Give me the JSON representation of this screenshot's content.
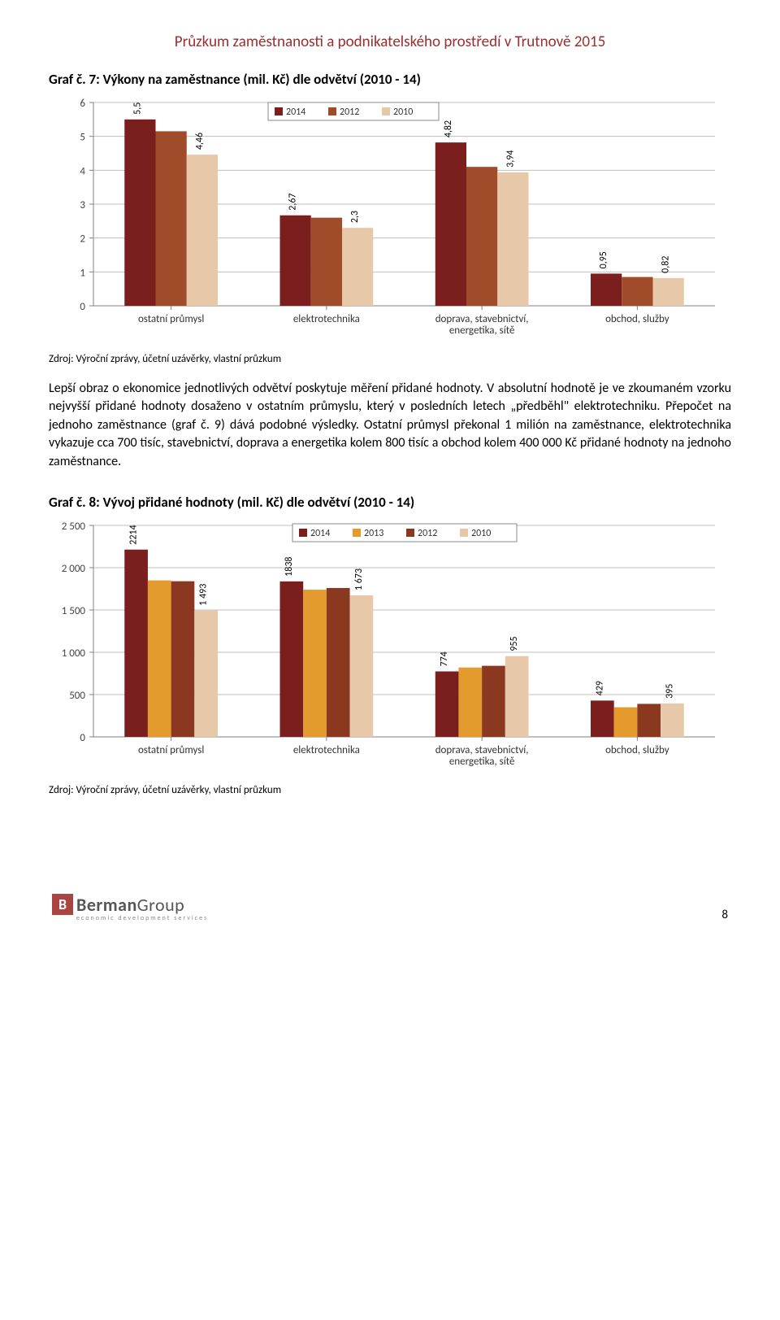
{
  "header": {
    "title": "Průzkum zaměstnanosti a podnikatelského prostředí v Trutnově 2015"
  },
  "chart1": {
    "type": "bar",
    "title": "Graf č. 7: Výkony na zaměstnance (mil. Kč) dle odvětví (2010 - 14)",
    "legend": [
      "2014",
      "2012",
      "2010"
    ],
    "categories": [
      "ostatní průmysl",
      "elektrotechnika",
      "doprava, stavebnictví,\nenergetika, sítě",
      "obchod, služby"
    ],
    "series": [
      {
        "name": "2014",
        "color": "#7a1e1e",
        "values": [
          5.5,
          2.67,
          4.82,
          0.95
        ]
      },
      {
        "name": "2012",
        "color": "#a04b2a",
        "values": [
          5.15,
          2.6,
          4.1,
          0.85
        ]
      },
      {
        "name": "2010",
        "color": "#e7c9a9",
        "values": [
          4.46,
          2.3,
          3.94,
          0.82
        ]
      }
    ],
    "value_labels": {
      "0": "5,5",
      "2": "4,46",
      "3": "2,67",
      "5": "2,3",
      "6": "4,82",
      "8": "3,94",
      "9": "0,95",
      "11": "0,82"
    },
    "ylim": [
      0,
      6
    ],
    "ytick_step": 1,
    "background_color": "#ffffff",
    "axis_color": "#808080",
    "grid_color": "#bfbfbf",
    "label_fontsize": 13,
    "rotated_label_fontsize": 12
  },
  "para1": "Lepší obraz o ekonomice jednotlivých odvětví poskytuje měření přidané hodnoty. V absolutní hodnotě je ve zkoumaném vzorku nejvyšší přidané hodnoty dosaženo v ostatním průmyslu, který v posledních letech „předběhl\" elektrotechniku. Přepočet na jednoho zaměstnance (graf č. 9) dává podobné výsledky. Ostatní průmysl překonal 1 milión na zaměstnance, elektrotechnika vykazuje cca 700 tisíc, stavebnictví, doprava a energetika kolem 800 tisíc a obchod kolem 400 000 Kč přidané hodnoty na jednoho zaměstnance.",
  "chart2": {
    "type": "bar",
    "title": "Graf č. 8: Vývoj přidané hodnoty (mil. Kč) dle odvětví (2010 - 14)",
    "legend": [
      "2014",
      "2013",
      "2012",
      "2010"
    ],
    "categories": [
      "ostatní průmysl",
      "elektrotechnika",
      "doprava, stavebnictví,\nenergetika, sítě",
      "obchod, služby"
    ],
    "series": [
      {
        "name": "2014",
        "color": "#7a1e1e",
        "values": [
          2214,
          1838,
          774,
          429
        ]
      },
      {
        "name": "2013",
        "color": "#e59a2e",
        "values": [
          1850,
          1740,
          820,
          350
        ]
      },
      {
        "name": "2012",
        "color": "#8a3820",
        "values": [
          1840,
          1760,
          840,
          390
        ]
      },
      {
        "name": "2010",
        "color": "#e7c9a9",
        "values": [
          1493,
          1673,
          955,
          395
        ]
      }
    ],
    "value_labels": {
      "0": "2214",
      "3": "1 493",
      "4": "1838",
      "7": "1 673",
      "8": "774",
      "11": "955",
      "12": "429",
      "15": "395"
    },
    "ylim": [
      0,
      2500
    ],
    "ytick_step": 500,
    "ytick_labels": [
      "0",
      "500",
      "1 000",
      "1 500",
      "2 000",
      "2 500"
    ],
    "background_color": "#ffffff",
    "axis_color": "#808080",
    "grid_color": "#bfbfbf",
    "label_fontsize": 13,
    "rotated_label_fontsize": 12
  },
  "source": "Zdroj: Výroční zprávy, účetní uzávěrky, vlastní průzkum",
  "footer": {
    "logo_square": "B",
    "logo_text_a": "Berman",
    "logo_text_b": "Group",
    "logo_sub": "economic development services",
    "pagenum": "8"
  }
}
